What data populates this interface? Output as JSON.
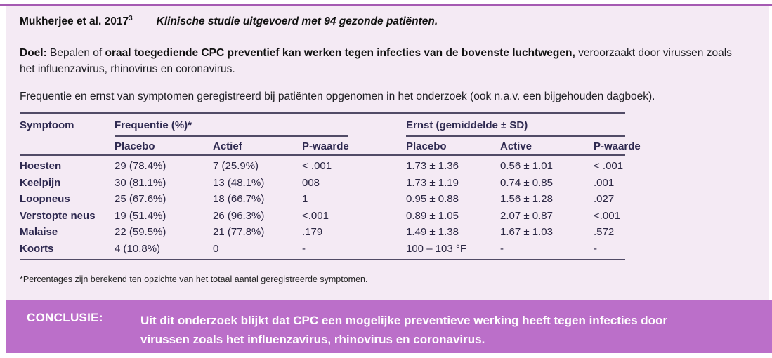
{
  "header": {
    "study": "Mukherjee et al. 2017",
    "study_ref": "3",
    "study_note": "Klinische studie uitgevoerd met 94 gezonde patiënten."
  },
  "goal": {
    "label": "Doel:",
    "regular_1": " Bepalen of ",
    "bold_1": "oraal toegediende CPC preventief kan werken tegen infecties van de bovenste luchtwegen,",
    "regular_2": " veroorzaakt door virussen zoals het influenzavirus, rhinovirus en coronavirus."
  },
  "intro": "Frequentie en ernst van symptomen geregistreerd bij patiënten opgenomen in het onderzoek (ook n.a.v. een bijgehouden dagboek).",
  "table": {
    "col_symptom": "Symptoom",
    "group_frequency": "Frequentie (%)*",
    "group_severity": "Ernst (gemiddelde ± SD)",
    "sub_freq_placebo": "Placebo",
    "sub_freq_actief": "Actief",
    "sub_freq_p": "P-waarde",
    "sub_ernst_placebo": "Placebo",
    "sub_ernst_active": "Active",
    "sub_ernst_p": "P-waarde",
    "rows": [
      {
        "symptom": "Hoesten",
        "freq_placebo": "29 (78.4%)",
        "freq_actief": "7 (25.9%)",
        "freq_p": "< .001",
        "ernst_placebo": "1.73 ± 1.36",
        "ernst_active": "0.56 ± 1.01",
        "ernst_p": "< .001"
      },
      {
        "symptom": "Keelpijn",
        "freq_placebo": "30 (81.1%)",
        "freq_actief": "13 (48.1%)",
        "freq_p": "008",
        "ernst_placebo": "1.73 ± 1.19",
        "ernst_active": "0.74 ± 0.85",
        "ernst_p": ".001"
      },
      {
        "symptom": "Loopneus",
        "freq_placebo": "25 (67.6%)",
        "freq_actief": "18 (66.7%)",
        "freq_p": "1",
        "ernst_placebo": "0.95 ± 0.88",
        "ernst_active": "1.56 ± 1.28",
        "ernst_p": ".027"
      },
      {
        "symptom": "Verstopte neus",
        "freq_placebo": "19 (51.4%)",
        "freq_actief": "26 (96.3%)",
        "freq_p": "<.001",
        "ernst_placebo": "0.89 ± 1.05",
        "ernst_active": "2.07 ± 0.87",
        "ernst_p": "<.001"
      },
      {
        "symptom": "Malaise",
        "freq_placebo": "22 (59.5%)",
        "freq_actief": "21 (77.8%)",
        "freq_p": ".179",
        "ernst_placebo": "1.49 ± 1.38",
        "ernst_active": "1.67 ± 1.03",
        "ernst_p": ".572"
      },
      {
        "symptom": "Koorts",
        "freq_placebo": "4 (10.8%)",
        "freq_actief": "0",
        "freq_p": "-",
        "ernst_placebo": "100 – 103 °F",
        "ernst_active": "-",
        "ernst_p": "-"
      }
    ]
  },
  "footnote": "*Percentages zijn berekend ten opzichte van het totaal aantal geregistreerde symptomen.",
  "conclusion": {
    "label": "CONCLUSIE:",
    "text": "Uit dit onderzoek blijkt dat CPC een mogelijke preventieve werking heeft tegen infecties door virussen zoals het influenzavirus, rhinovirus en coronavirus."
  },
  "colors": {
    "panel_background": "#f4eaf4",
    "top_line": "#a55ab2",
    "conclusion_bar": "#bb6fc9",
    "table_text": "#2e2950",
    "rule": "#514b66"
  }
}
